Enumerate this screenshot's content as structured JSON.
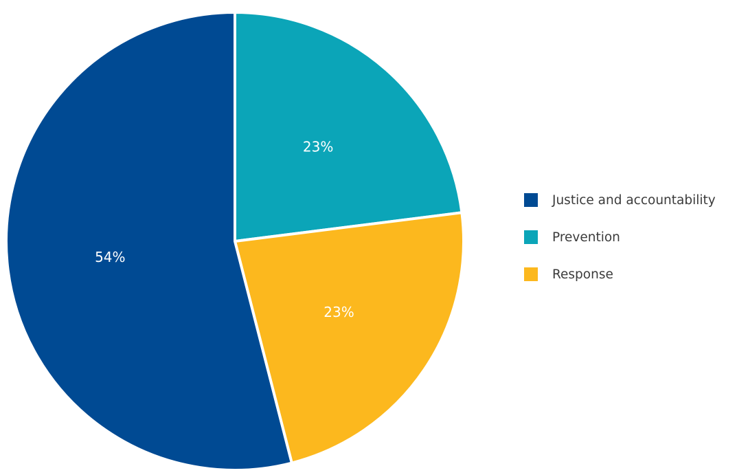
{
  "chart_data": {
    "type": "pie",
    "title": "",
    "slices": [
      {
        "name": "Prevention",
        "value": 23,
        "label": "23%",
        "color": "#0ba5b8"
      },
      {
        "name": "Response",
        "value": 23,
        "label": "23%",
        "color": "#fcb81e"
      },
      {
        "name": "Justice and accountability",
        "value": 54,
        "label": "54%",
        "color": "#004a93"
      }
    ],
    "legend": {
      "placement": "right",
      "order": [
        "Justice and accountability",
        "Prevention",
        "Response"
      ]
    },
    "start_direction": "top",
    "order_direction": "clockwise"
  }
}
